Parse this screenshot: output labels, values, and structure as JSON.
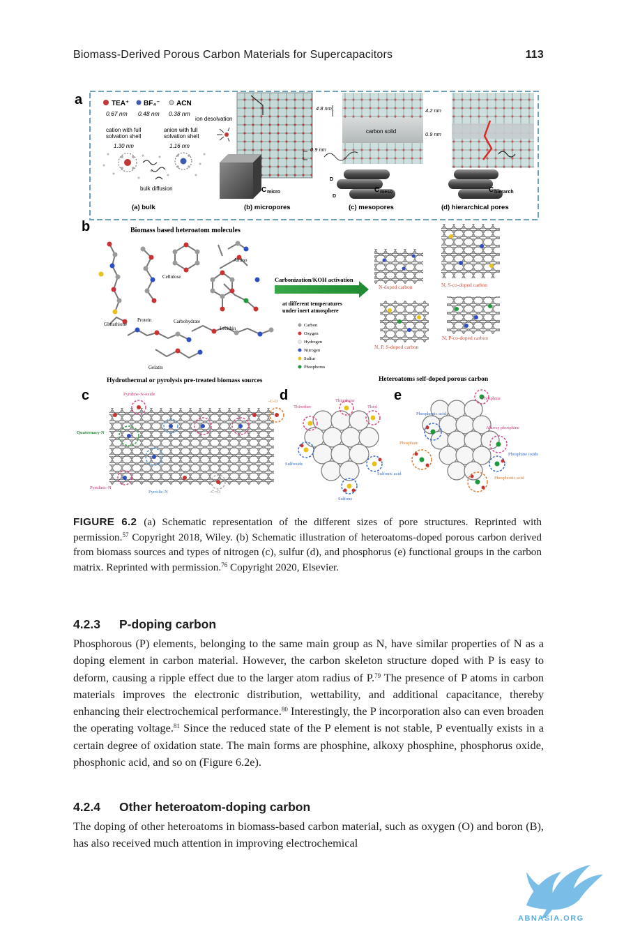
{
  "header": {
    "running_title": "Biomass-Derived Porous Carbon Materials for Supercapacitors",
    "page_number": "113"
  },
  "figure": {
    "panel_a": {
      "letter": "a",
      "legend": [
        "TEA⁺",
        "BF₄⁻",
        "ACN"
      ],
      "legend_sizes": [
        "0.67 nm",
        "0.48 nm",
        "0.38 nm"
      ],
      "ion_desolvation": "ion desolvation",
      "cation_label": [
        "cation with full",
        "solvation shell"
      ],
      "anion_label": [
        "anion with full",
        "solvation shell"
      ],
      "cation_size": "1.30 nm",
      "anion_size": "1.16 nm",
      "bulk_diffusion": "bulk diffusion",
      "micro_pore_size": "0.9 nm",
      "meso_top": "4.8 nm",
      "meso_mid": "carbon solid",
      "meso_bottom": "0.9 nm",
      "hier_top": "4.2 nm",
      "hier_mid": "0.9 nm",
      "sublabels": [
        "(a) bulk",
        "(b) micropores",
        "(c) mesopores",
        "(d) hierarchical pores"
      ],
      "c_micro": "C",
      "c_micro_sub": "micro",
      "c_meso": "C",
      "c_meso_sub": "meso",
      "c_hier": "C",
      "c_hier_sub": "hierarch",
      "d_perp": "D",
      "d_par": "D"
    },
    "panel_b": {
      "letter": "b",
      "title": "Biomass based heteroatom molecules",
      "molecules": [
        "Amino",
        "Cellulose",
        "Protein",
        "Carbohydrate",
        "Glutathione",
        "Lecithin",
        "Gelatin"
      ],
      "arrow_label": "Carbonization/KOH activation",
      "conditions": [
        "at different temperatures",
        "under inert atmosphere"
      ],
      "legend": [
        "Carbon",
        "Oxygen",
        "Hydrogen",
        "Nitrogen",
        "Sulfur",
        "Phosphorus"
      ],
      "legend_colors": [
        "#9a9a9a",
        "#d23232",
        "#e8e8e8",
        "#2f4fc0",
        "#e8c21c",
        "#1e9a3c"
      ],
      "products": [
        "N-doped carbon",
        "N, S-co-doped carbon",
        "N, P, S-doped carbon",
        "N, P-co-doped carbon"
      ],
      "bottom_left": "Hydrothermal or pyrolysis pre-treated biomass sources",
      "bottom_right": "Heteroatoms self-doped porous carbon"
    },
    "panel_c": {
      "letter": "c",
      "labels": [
        "Pyridine-N-oxide",
        "-C-O",
        "Quaternary-N",
        "Pyridinic-N",
        "Pyrrolic-N",
        "-C=O"
      ]
    },
    "panel_d": {
      "letter": "d",
      "labels": [
        "Thiophene",
        "Thiol",
        "Thioether",
        "Sulfoxide",
        "Sulfonic acid",
        "Sulfone"
      ]
    },
    "panel_e": {
      "letter": "e",
      "labels": [
        "Phosphine",
        "Phosphonic acid",
        "Alkoxy phosphine",
        "Phosphate",
        "Phosphine oxide",
        "Phosphonic acid"
      ]
    }
  },
  "caption": {
    "label": "FIGURE 6.2",
    "p1": "(a) Schematic representation of the different sizes of pore structures. Reprinted with permission.",
    "ref1": "57",
    "p2": " Copyright 2018, Wiley. (b) Schematic illustration of heteroatoms-doped porous carbon derived from biomass sources and types of nitrogen (c), sulfur (d), and phosphorus (e) functional groups in the carbon matrix. Reprinted with permission.",
    "ref2": "76",
    "p3": " Copyright 2020, Elsevier."
  },
  "section_423": {
    "number": "4.2.3",
    "title": "P-doping carbon",
    "t1": "Phosphorous (P) elements, belonging to the same main group as N, have similar properties of N as a doping element in carbon material. However, the carbon skeleton structure doped with P is easy to deform, causing a ripple effect due to the larger atom radius of P.",
    "r1": "79",
    "t2": " The presence of P atoms in carbon materials improves the electronic distribution, wettability, and additional capacitance, thereby enhancing their electrochemical performance.",
    "r2": "80",
    "t3": " Interestingly, the P incorporation also can even broaden the operating voltage.",
    "r3": "81",
    "t4": " Since the reduced state of the P element is not stable, P eventually exists in a certain degree of oxidation state. The main forms are phosphine, alkoxy phosphine, phosphorus oxide, phosphonic acid, and so on (Figure 6.2e)."
  },
  "section_424": {
    "number": "4.2.4",
    "title": "Other heteroatom-doping carbon",
    "t1": "The doping of other heteroatoms in biomass-based carbon material, such as oxygen (O) and boron (B), has also received much attention in improving electrochemical"
  },
  "watermark": {
    "text": "ABNASIA.ORG",
    "color": "#5aaee0"
  }
}
